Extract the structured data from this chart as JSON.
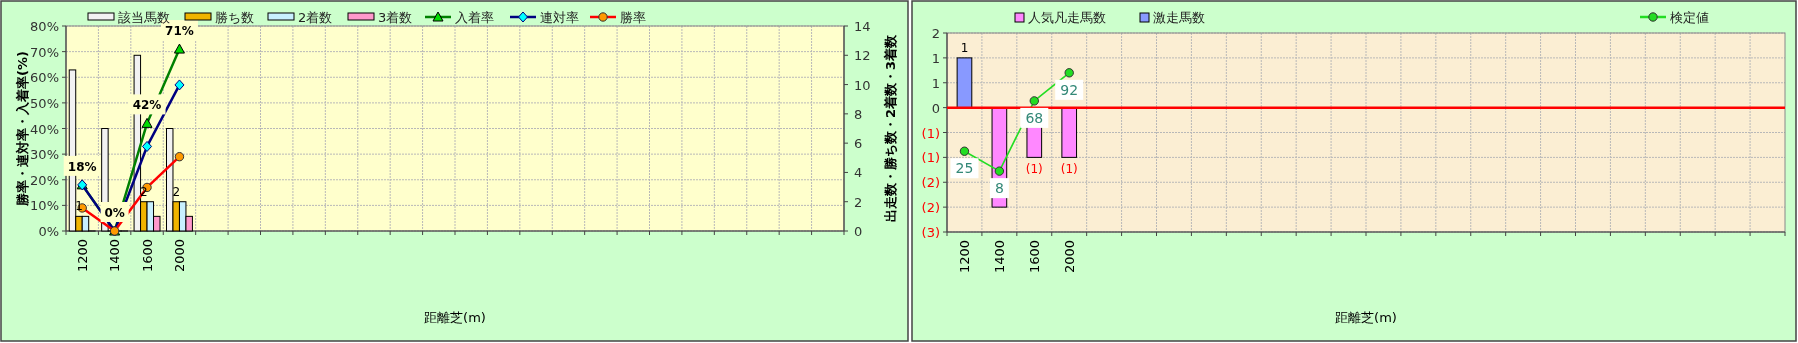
{
  "chart_data": [
    {
      "type": "bar",
      "xlabel": "距離芝(m)",
      "ylabel": "勝率・連対率・入着率(%)",
      "y2label": "出走数・勝ち数・2着数・3着数",
      "categories": [
        "1200",
        "1400",
        "1600",
        "2000",
        null,
        null,
        null,
        null,
        null,
        null,
        null,
        null,
        null,
        null,
        null,
        null,
        null,
        null,
        null,
        null,
        null,
        null,
        null,
        null
      ],
      "series": [
        {
          "name": "該当馬数",
          "axis": "y2",
          "color": "#f2f2f2",
          "values": [
            11,
            7,
            12,
            7,
            null,
            null,
            null,
            null,
            null,
            null,
            null,
            null,
            null,
            null,
            null,
            null,
            null,
            null,
            null,
            null,
            null,
            null,
            null,
            null
          ]
        },
        {
          "name": "勝ち数",
          "axis": "y2",
          "color": "#f0b400",
          "values": [
            1,
            0,
            2,
            2,
            null,
            null,
            null,
            null,
            null,
            null,
            null,
            null,
            null,
            null,
            null,
            null,
            null,
            null,
            null,
            null,
            null,
            null,
            null,
            null
          ],
          "value_labels": [
            "1",
            null,
            "2",
            "2",
            null,
            null,
            null,
            null,
            null,
            null,
            null,
            null,
            null,
            null,
            null,
            null,
            null,
            null,
            null,
            null,
            null,
            null,
            null,
            null
          ]
        },
        {
          "name": "2着数",
          "axis": "y2",
          "color": "#c8f0ff",
          "values": [
            1,
            0,
            2,
            2,
            null,
            null,
            null,
            null,
            null,
            null,
            null,
            null,
            null,
            null,
            null,
            null,
            null,
            null,
            null,
            null,
            null,
            null,
            null,
            null
          ]
        },
        {
          "name": "3着数",
          "axis": "y2",
          "color": "#ff99cc",
          "values": [
            0,
            0,
            1,
            1,
            null,
            null,
            null,
            null,
            null,
            null,
            null,
            null,
            null,
            null,
            null,
            null,
            null,
            null,
            null,
            null,
            null,
            null,
            null,
            null
          ]
        },
        {
          "name": "入着率",
          "type": "line",
          "color": "#008000",
          "marker": "triangle",
          "values": [
            18,
            0,
            42,
            71,
            null,
            null,
            null,
            null,
            null,
            null,
            null,
            null,
            null,
            null,
            null,
            null,
            null,
            null,
            null,
            null,
            null,
            null,
            null,
            null
          ],
          "value_labels": [
            "18%",
            "0%",
            "42%",
            "71%",
            null,
            null,
            null,
            null,
            null,
            null,
            null,
            null,
            null,
            null,
            null,
            null,
            null,
            null,
            null,
            null,
            null,
            null,
            null,
            null
          ]
        },
        {
          "name": "連対率",
          "type": "line",
          "color": "#000080",
          "marker": "diamond",
          "values": [
            18,
            0,
            33,
            57,
            null,
            null,
            null,
            null,
            null,
            null,
            null,
            null,
            null,
            null,
            null,
            null,
            null,
            null,
            null,
            null,
            null,
            null,
            null,
            null
          ]
        },
        {
          "name": "勝率",
          "type": "line",
          "color": "#ff0000",
          "marker": "circle",
          "values": [
            9,
            0,
            17,
            29,
            null,
            null,
            null,
            null,
            null,
            null,
            null,
            null,
            null,
            null,
            null,
            null,
            null,
            null,
            null,
            null,
            null,
            null,
            null,
            null
          ]
        }
      ],
      "ylim": [
        0,
        80
      ],
      "yticks": [
        {
          "value": 0,
          "label": "0%"
        },
        {
          "value": 10,
          "label": "10%"
        },
        {
          "value": 20,
          "label": "20%"
        },
        {
          "value": 30,
          "label": "30%"
        },
        {
          "value": 40,
          "label": "40%"
        },
        {
          "value": 50,
          "label": "50%"
        },
        {
          "value": 60,
          "label": "60%"
        },
        {
          "value": 70,
          "label": "70%"
        },
        {
          "value": 80,
          "label": "80%"
        }
      ],
      "y2lim": [
        0,
        14
      ],
      "y2ticks": [
        0,
        2,
        4,
        6,
        8,
        10,
        12,
        14
      ],
      "grid": true,
      "legend": "top"
    },
    {
      "type": "bar",
      "xlabel": "距離芝(m)",
      "stacked": true,
      "categories": [
        "1200",
        "1400",
        "1600",
        "2000",
        null,
        null,
        null,
        null,
        null,
        null,
        null,
        null,
        null,
        null,
        null,
        null,
        null,
        null,
        null,
        null,
        null,
        null,
        null,
        null
      ],
      "series": [
        {
          "name": "人気凡走馬数",
          "color": "#ff88ff",
          "values": [
            null,
            -2.4,
            -1.2,
            -1.2,
            null,
            null,
            null,
            null,
            null,
            null,
            null,
            null,
            null,
            null,
            null,
            null,
            null,
            null,
            null,
            null,
            null,
            null,
            null,
            null
          ],
          "value_labels": [
            null,
            null,
            "(1)",
            "(1)",
            null,
            null,
            null,
            null,
            null,
            null,
            null,
            null,
            null,
            null,
            null,
            null,
            null,
            null,
            null,
            null,
            null,
            null,
            null,
            null
          ]
        },
        {
          "name": "激走馬数",
          "color": "#8899ff",
          "values": [
            1.2,
            null,
            null,
            null,
            null,
            null,
            null,
            null,
            null,
            null,
            null,
            null,
            null,
            null,
            null,
            null,
            null,
            null,
            null,
            null,
            null,
            null,
            null,
            null
          ],
          "value_labels": [
            "1",
            null,
            null,
            null,
            null,
            null,
            null,
            null,
            null,
            null,
            null,
            null,
            null,
            null,
            null,
            null,
            null,
            null,
            null,
            null,
            null,
            null,
            null,
            null
          ]
        },
        {
          "name": "検定値",
          "type": "line",
          "axis": "y2",
          "color": "#22dd22",
          "marker": "circle",
          "values": [
            25,
            8,
            68,
            92,
            null,
            null,
            null,
            null,
            null,
            null,
            null,
            null,
            null,
            null,
            null,
            null,
            null,
            null,
            null,
            null,
            null,
            null,
            null,
            null
          ],
          "value_labels": [
            "25",
            "8",
            "68",
            "92",
            null,
            null,
            null,
            null,
            null,
            null,
            null,
            null,
            null,
            null,
            null,
            null,
            null,
            null,
            null,
            null,
            null,
            null,
            null,
            null
          ]
        }
      ],
      "ylim": [
        -3,
        1.8
      ],
      "yticks": [
        {
          "value": -3,
          "label": "(3)"
        },
        {
          "value": -2.4,
          "label": "(2)"
        },
        {
          "value": -1.8,
          "label": "(2)"
        },
        {
          "value": -1.2,
          "label": "(1)"
        },
        {
          "value": -0.6,
          "label": "(1)"
        },
        {
          "value": 0,
          "label": "0"
        },
        {
          "value": 0.6,
          "label": "1"
        },
        {
          "value": 1.2,
          "label": "1"
        },
        {
          "value": 1.8,
          "label": "2"
        }
      ],
      "y2lim": [
        -44,
        126
      ],
      "grid": true,
      "legend": "top",
      "ref_lines": [
        {
          "axis": "y",
          "value": 0,
          "color": "#ff0000"
        }
      ]
    }
  ]
}
